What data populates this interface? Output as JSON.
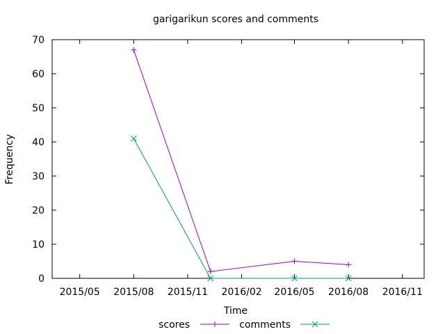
{
  "chart_data": {
    "type": "line",
    "title": "garigarikun scores and comments",
    "xlabel": "Time",
    "ylabel": "Frequency",
    "x_ticks": [
      "2015/05",
      "2015/08",
      "2015/11",
      "2016/02",
      "2016/05",
      "2016/08",
      "2016/11"
    ],
    "x_range": [
      "2015-03-15",
      "2016-12-08"
    ],
    "ylim": [
      0,
      70
    ],
    "y_ticks": [
      "0",
      "10",
      "20",
      "30",
      "40",
      "50",
      "60",
      "70"
    ],
    "grid": false,
    "legend_position": "bottom",
    "series": [
      {
        "name": "scores",
        "color": "#9400d3",
        "marker": "plus",
        "points": [
          {
            "x": "2015-08-01",
            "y": 67
          },
          {
            "x": "2015-12-10",
            "y": 2
          },
          {
            "x": "2016-05-01",
            "y": 5
          },
          {
            "x": "2016-08-01",
            "y": 4
          }
        ]
      },
      {
        "name": "comments",
        "color": "#009e73",
        "marker": "cross",
        "points": [
          {
            "x": "2015-08-01",
            "y": 41
          },
          {
            "x": "2015-12-10",
            "y": 0
          },
          {
            "x": "2016-05-01",
            "y": 0
          },
          {
            "x": "2016-08-01",
            "y": 0
          }
        ]
      }
    ]
  }
}
